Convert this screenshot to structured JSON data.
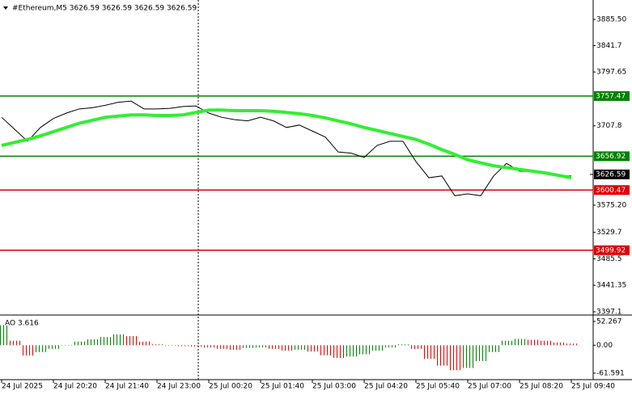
{
  "chart_data": [
    {
      "type": "line",
      "title": "#Ethereum,M5  3626.59 3626.59 3626.59 3626.59",
      "categories": [
        "24 Jul 2025",
        null,
        null,
        null,
        "24 Jul 20:20",
        null,
        null,
        null,
        "24 Jul 21:40",
        null,
        null,
        null,
        "24 Jul 23:00",
        null,
        null,
        null,
        "25 Jul 00:20",
        null,
        null,
        null,
        "25 Jul 01:40",
        null,
        null,
        null,
        "25 Jul 03:00",
        null,
        null,
        null,
        "25 Jul 04:20",
        null,
        null,
        null,
        "25 Jul 05:40",
        null,
        null,
        null,
        "25 Jul 07:00",
        null,
        null,
        null,
        "25 Jul 08:20",
        null,
        null,
        null,
        "25 Jul 09:40"
      ],
      "series": [
        {
          "name": "price",
          "color": "#000000",
          "values": [
            3722,
            3702,
            3682,
            3705,
            3720,
            3729,
            3736,
            3738,
            3742,
            3747,
            3749,
            3736,
            3736,
            3737,
            3740,
            3741,
            3729,
            3722,
            3718,
            3716,
            3722,
            3716,
            3705,
            3709,
            3699,
            3689,
            3664,
            3662,
            3655,
            3675,
            3682,
            3682,
            3648,
            3621,
            3624,
            3591,
            3594,
            3591,
            3624,
            3645,
            3632,
            3631,
            3628,
            3625,
            3624
          ]
        },
        {
          "name": "moving average",
          "color": "#33ee33",
          "values": [
            3675,
            3680,
            3685,
            3691,
            3698,
            3705,
            3712,
            3717,
            3722,
            3724,
            3726,
            3726,
            3725,
            3725,
            3726,
            3730,
            3734,
            3734,
            3733,
            3733,
            3733,
            3732,
            3730,
            3728,
            3725,
            3721,
            3716,
            3711,
            3705,
            3700,
            3695,
            3690,
            3685,
            3677,
            3668,
            3660,
            3651,
            3646,
            3641,
            3638,
            3635,
            3632,
            3629,
            3625,
            3621
          ]
        }
      ],
      "levels": [
        {
          "value": 3757.47,
          "color": "#008000"
        },
        {
          "value": 3656.92,
          "color": "#008000"
        },
        {
          "value": 3600.47,
          "color": "#e00000"
        },
        {
          "value": 3499.92,
          "color": "#e00000"
        }
      ],
      "last_price": 3626.59,
      "ylim": [
        3391.7,
        3917.9
      ],
      "yticks": [
        {
          "value": 3885.5,
          "label": "3885.50"
        },
        3841.7,
        3797.65,
        3707.8,
        {
          "value": 3575.2,
          "label": "3575.20"
        },
        3529.7,
        3485.5,
        3441.35,
        3397.1
      ]
    },
    {
      "type": "bar",
      "title": "AO 3.616",
      "values": [
        44,
        10,
        -23,
        -15,
        -8,
        0,
        8,
        13,
        18,
        24,
        20,
        8,
        2,
        -1,
        -2,
        -3,
        -5,
        -8,
        -10,
        -6,
        -5,
        -8,
        -12,
        -10,
        -14,
        -22,
        -28,
        -25,
        -20,
        -12,
        -5,
        2,
        -8,
        -30,
        -45,
        -55,
        -50,
        -35,
        -15,
        10,
        14,
        12,
        10,
        6,
        3.616
      ],
      "up_color": "#008000",
      "down_color": "#e00000",
      "ylim": [
        -75.8,
        62.9
      ],
      "yticks": [
        52.267,
        {
          "value": 0,
          "label": "0.00"
        },
        -61.591
      ]
    }
  ]
}
